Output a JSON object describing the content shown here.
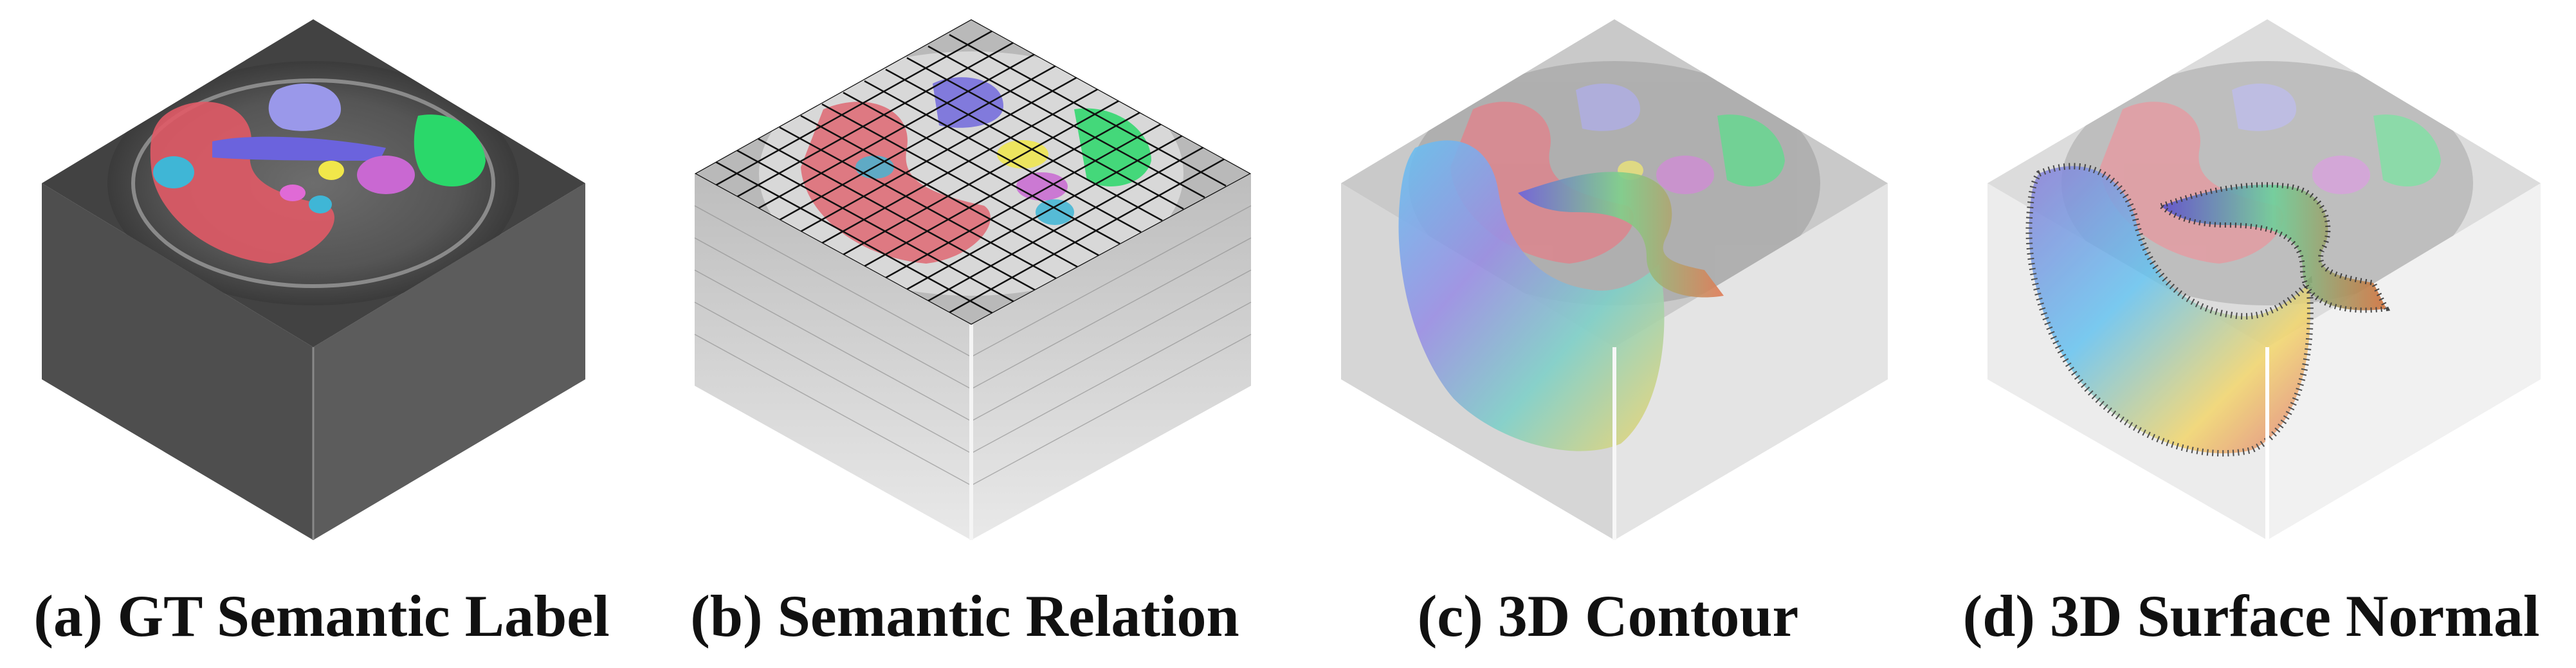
{
  "figure": {
    "panels": [
      {
        "id": "a",
        "caption": "(a) GT Semantic Label"
      },
      {
        "id": "b",
        "caption": "(b) Semantic Relation"
      },
      {
        "id": "c",
        "caption": "(c) 3D Contour"
      },
      {
        "id": "d",
        "caption": "(d) 3D Surface Normal"
      }
    ]
  },
  "colors": {
    "spleen": "#e05a66",
    "left_kidney": "#e05a66",
    "stomach": "#9a98ea",
    "liver": "#2ad86a",
    "pancreas": "#6b63dd",
    "aorta": "#f1e74a",
    "gallbladder": "#c968d2",
    "portal_vein": "#3fb6d6",
    "duodenum": "#c060c8",
    "cube_dark": "#4a4a4a",
    "grid_line": "#111111"
  }
}
